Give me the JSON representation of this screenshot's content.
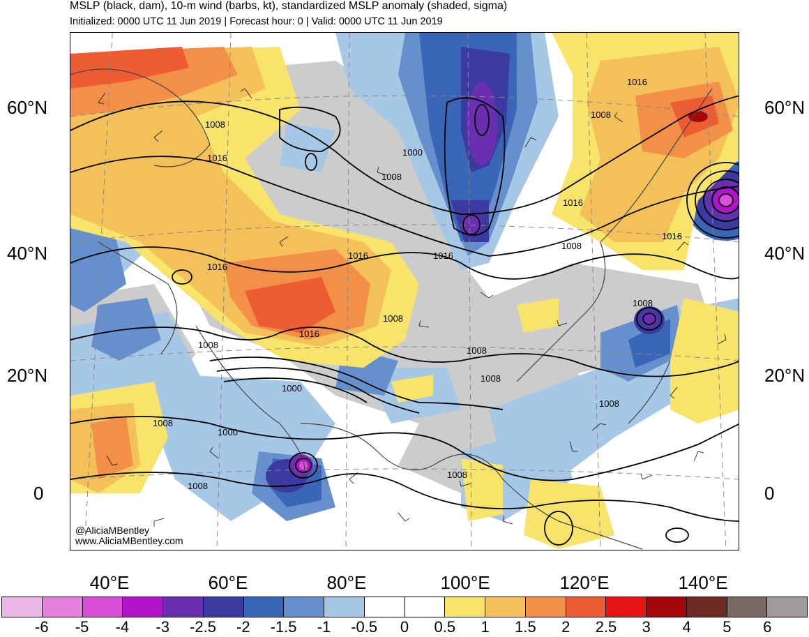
{
  "header": {
    "title": "MSLP (black, dam), 10-m wind (barbs, kt), standardized MSLP anomaly (shaded, sigma)",
    "subtitle": "Initialized: 0000 UTC 11 Jun 2019 | Forecast hour: 0 | Valid: 0000 UTC 11 Jun 2019"
  },
  "axes": {
    "lat_left": [
      "60°N",
      "40°N",
      "20°N",
      "0"
    ],
    "lat_right": [
      "60°N",
      "40°N",
      "20°N",
      "0"
    ],
    "lon": [
      "40°E",
      "60°E",
      "80°E",
      "100°E",
      "120°E",
      "140°E"
    ]
  },
  "credits": {
    "handle": "@AliciaMBentley",
    "site": "www.AliciaMBentley.com"
  },
  "isobar_labels": [
    "1008",
    "1016",
    "1000",
    "1008",
    "1016",
    "1016",
    "1008",
    "1016",
    "1008",
    "1016",
    "1008",
    "1008",
    "1000",
    "1008",
    "1000",
    "1008",
    "1008",
    "1016",
    "1008",
    "1016",
    "1008",
    "1008",
    "1008",
    "1016"
  ],
  "colorbar": {
    "labels": [
      "-6",
      "-5",
      "-4",
      "-3",
      "-2.5",
      "-2",
      "-1.5",
      "-1",
      "-0.5",
      "0",
      "0.5",
      "1",
      "1.5",
      "2",
      "2.5",
      "3",
      "4",
      "5",
      "6"
    ],
    "colors": [
      "#ecb6e8",
      "#e680e0",
      "#d84fd8",
      "#b114c8",
      "#6a2fb0",
      "#3b3aa0",
      "#3a66b8",
      "#6690cc",
      "#a6c8e6",
      "#ffffff",
      "#ffffff",
      "#f8e46a",
      "#f4c05a",
      "#f29048",
      "#ee5c34",
      "#e81414",
      "#a40808",
      "#6e2a22",
      "#7a6a66",
      "#a09a9a"
    ]
  }
}
